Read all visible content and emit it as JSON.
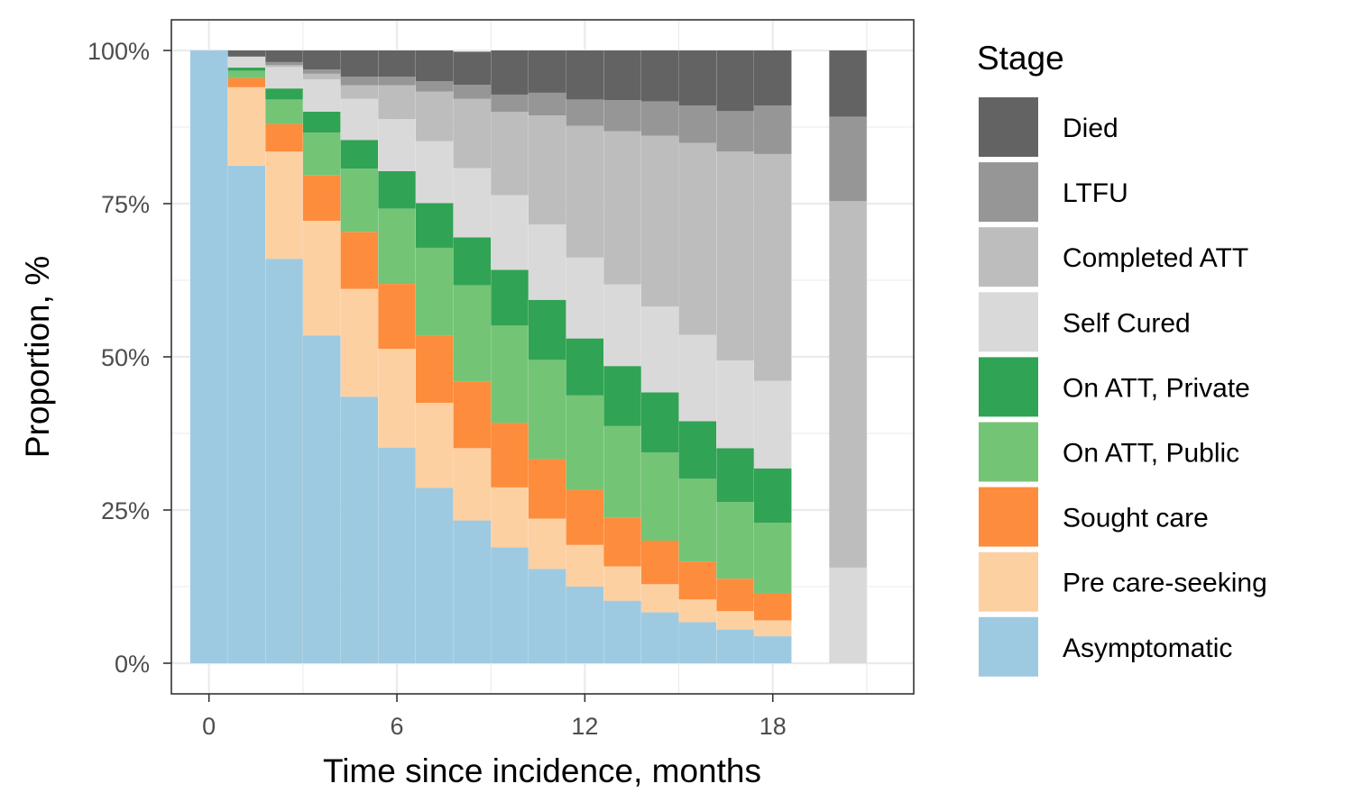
{
  "chart_data": {
    "type": "bar",
    "stacked": true,
    "stack_order_bottom_to_top": [
      "Asymptomatic",
      "Pre care-seeking",
      "Sought care",
      "On ATT, Public",
      "On ATT, Private",
      "Self Cured",
      "Completed ATT",
      "LTFU",
      "Died"
    ],
    "xlabel": "Time since incidence, months",
    "ylabel": "Proportion, %",
    "xlim": [
      -1.2,
      22.5
    ],
    "ylim": [
      -5,
      105
    ],
    "x_ticks": [
      0,
      6,
      12,
      18
    ],
    "y_ticks": [
      0,
      25,
      50,
      75,
      100
    ],
    "y_tick_labels": [
      "0%",
      "25%",
      "50%",
      "75%",
      "100%"
    ],
    "grid": true,
    "legend": {
      "title": "Stage",
      "position": "right"
    },
    "x": [
      0,
      1.2,
      2.4,
      3.6,
      4.8,
      6.0,
      7.2,
      8.4,
      9.6,
      10.8,
      12.0,
      13.2,
      14.4,
      15.6,
      16.8,
      18.0,
      20.4
    ],
    "series": [
      {
        "name": "Asymptomatic",
        "color": "#9ecae1",
        "values": [
          100,
          81.2,
          66.0,
          53.5,
          43.5,
          35.2,
          28.6,
          23.3,
          18.9,
          15.4,
          12.5,
          10.2,
          8.3,
          6.7,
          5.5,
          4.4,
          0
        ]
      },
      {
        "name": "Pre care-seeking",
        "color": "#fdd0a2",
        "values": [
          0,
          12.8,
          17.5,
          18.7,
          17.6,
          16.1,
          13.9,
          11.8,
          9.8,
          8.2,
          6.8,
          5.6,
          4.6,
          3.7,
          3.0,
          2.6,
          0
        ]
      },
      {
        "name": "Sought care",
        "color": "#fd8d3c",
        "values": [
          0,
          1.5,
          4.5,
          7.4,
          9.3,
          10.6,
          10.9,
          10.9,
          10.5,
          9.7,
          9.0,
          8.0,
          7.1,
          6.2,
          5.3,
          4.4,
          0
        ]
      },
      {
        "name": "On ATT, Public",
        "color": "#74c476",
        "values": [
          0,
          1.2,
          4.0,
          7.0,
          10.3,
          12.3,
          14.4,
          15.7,
          15.9,
          16.2,
          15.4,
          14.9,
          14.4,
          13.5,
          12.5,
          11.5,
          0
        ]
      },
      {
        "name": "On ATT, Private",
        "color": "#31a354",
        "values": [
          0,
          0.5,
          1.8,
          3.4,
          4.7,
          6.1,
          7.3,
          7.8,
          9.1,
          9.8,
          9.3,
          9.8,
          9.8,
          9.4,
          8.8,
          8.9,
          0
        ]
      },
      {
        "name": "Self Cured",
        "color": "#d9d9d9",
        "values": [
          0,
          1.8,
          3.5,
          5.3,
          6.7,
          8.5,
          10.1,
          11.3,
          12.2,
          12.3,
          13.2,
          13.3,
          14.0,
          14.1,
          14.3,
          14.3,
          15.6
        ]
      },
      {
        "name": "Completed ATT",
        "color": "#bdbdbd",
        "values": [
          0,
          0,
          0.3,
          0.9,
          2.2,
          5.5,
          8.1,
          11.3,
          13.6,
          17.8,
          21.5,
          25.0,
          27.9,
          31.3,
          34.1,
          37.0,
          59.8
        ]
      },
      {
        "name": "LTFU",
        "color": "#969696",
        "values": [
          0,
          0,
          0.5,
          0.7,
          1.4,
          1.4,
          1.7,
          2.3,
          2.8,
          3.7,
          4.3,
          5.1,
          5.6,
          6.1,
          6.6,
          7.9,
          13.8
        ]
      },
      {
        "name": "Died",
        "color": "#636363",
        "values": [
          0,
          1.0,
          1.9,
          3.1,
          4.3,
          4.3,
          5.0,
          5.4,
          7.2,
          6.9,
          8.0,
          8.1,
          8.3,
          9.0,
          9.9,
          9.0,
          10.8
        ]
      }
    ]
  }
}
